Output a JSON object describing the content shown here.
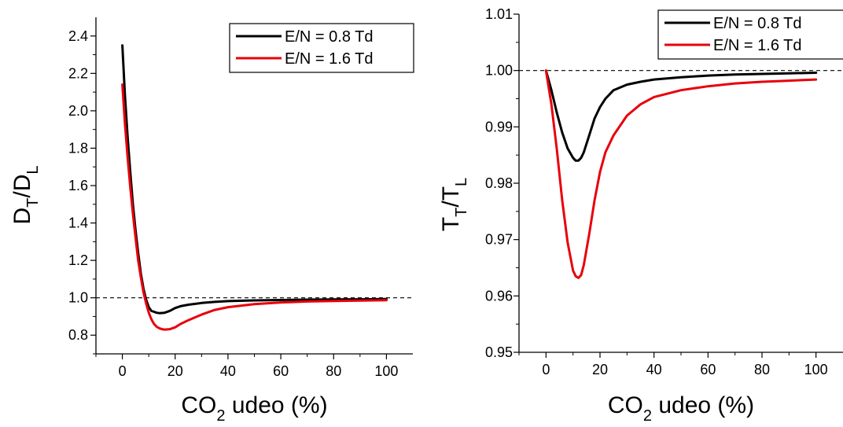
{
  "chart_data": [
    {
      "type": "line",
      "title": "",
      "xlabel_parts": [
        "CO",
        "2",
        " udeo (%)"
      ],
      "ylabel_parts": [
        "D",
        "T",
        "/D",
        "L"
      ],
      "xlim": [
        -10,
        110
      ],
      "ylim": [
        0.7,
        2.5
      ],
      "xticks": [
        0,
        20,
        40,
        60,
        80,
        100
      ],
      "xtick_labels": [
        "0",
        "20",
        "40",
        "60",
        "80",
        "100"
      ],
      "yticks": [
        0.8,
        1.0,
        1.2,
        1.4,
        1.6,
        1.8,
        2.0,
        2.2,
        2.4
      ],
      "ytick_labels": [
        "0.8",
        "1.0",
        "1.2",
        "1.4",
        "1.6",
        "1.8",
        "2.0",
        "2.2",
        "2.4"
      ],
      "reference_line": 1.0,
      "legend_position": "top-right",
      "series": [
        {
          "name": "E/N = 0.8 Td",
          "color": "#000000",
          "x": [
            0,
            1,
            2,
            3,
            4,
            5,
            6,
            7,
            8,
            9,
            10,
            11,
            12,
            13,
            14,
            16,
            18,
            20,
            22,
            25,
            30,
            35,
            40,
            50,
            60,
            70,
            80,
            90,
            100
          ],
          "y": [
            2.35,
            2.08,
            1.86,
            1.67,
            1.5,
            1.36,
            1.24,
            1.13,
            1.05,
            0.99,
            0.95,
            0.93,
            0.925,
            0.92,
            0.918,
            0.92,
            0.93,
            0.945,
            0.955,
            0.963,
            0.972,
            0.978,
            0.982,
            0.986,
            0.988,
            0.99,
            0.991,
            0.992,
            0.993
          ]
        },
        {
          "name": "E/N = 1.6 Td",
          "color": "#e8000b",
          "x": [
            0,
            1,
            2,
            3,
            4,
            5,
            6,
            7,
            8,
            9,
            10,
            11,
            12,
            13,
            14,
            15,
            16,
            18,
            20,
            22,
            25,
            30,
            35,
            40,
            50,
            60,
            70,
            80,
            90,
            100
          ],
          "y": [
            2.14,
            1.93,
            1.75,
            1.59,
            1.45,
            1.32,
            1.2,
            1.11,
            1.03,
            0.97,
            0.92,
            0.885,
            0.86,
            0.845,
            0.837,
            0.832,
            0.83,
            0.832,
            0.842,
            0.86,
            0.88,
            0.91,
            0.935,
            0.95,
            0.966,
            0.975,
            0.98,
            0.983,
            0.985,
            0.987
          ]
        }
      ]
    },
    {
      "type": "line",
      "title": "",
      "xlabel_parts": [
        "CO",
        "2",
        " udeo (%)"
      ],
      "ylabel_parts": [
        "T",
        "T",
        "/T",
        "L"
      ],
      "xlim": [
        -10,
        110
      ],
      "ylim": [
        0.95,
        1.01
      ],
      "xticks": [
        0,
        20,
        40,
        60,
        80,
        100
      ],
      "xtick_labels": [
        "0",
        "20",
        "40",
        "60",
        "80",
        "100"
      ],
      "yticks": [
        0.95,
        0.96,
        0.97,
        0.98,
        0.99,
        1.0,
        1.01
      ],
      "ytick_labels": [
        "0.95",
        "0.96",
        "0.97",
        "0.98",
        "0.99",
        "1.00",
        "1.01"
      ],
      "reference_line": 1.0,
      "legend_position": "top-right",
      "series": [
        {
          "name": "E/N = 0.8 Td",
          "color": "#000000",
          "x": [
            0,
            2,
            4,
            6,
            8,
            10,
            11,
            12,
            13,
            14,
            16,
            18,
            20,
            22,
            25,
            30,
            35,
            40,
            50,
            60,
            70,
            80,
            90,
            100
          ],
          "y": [
            1.0,
            0.9965,
            0.9925,
            0.989,
            0.9862,
            0.9845,
            0.984,
            0.984,
            0.9845,
            0.9855,
            0.9885,
            0.9915,
            0.9935,
            0.995,
            0.9965,
            0.9975,
            0.998,
            0.9984,
            0.9988,
            0.9991,
            0.9993,
            0.9994,
            0.9995,
            0.9996
          ]
        },
        {
          "name": "E/N = 1.6 Td",
          "color": "#e8000b",
          "x": [
            0,
            2,
            4,
            6,
            8,
            10,
            11,
            12,
            13,
            14,
            16,
            18,
            20,
            22,
            25,
            30,
            35,
            40,
            50,
            60,
            70,
            80,
            90,
            100
          ],
          "y": [
            1.0,
            0.994,
            0.986,
            0.977,
            0.9695,
            0.9645,
            0.9635,
            0.9632,
            0.9637,
            0.9655,
            0.971,
            0.977,
            0.982,
            0.9855,
            0.9885,
            0.992,
            0.994,
            0.9953,
            0.9965,
            0.9972,
            0.9977,
            0.998,
            0.9982,
            0.9984
          ]
        }
      ]
    }
  ]
}
